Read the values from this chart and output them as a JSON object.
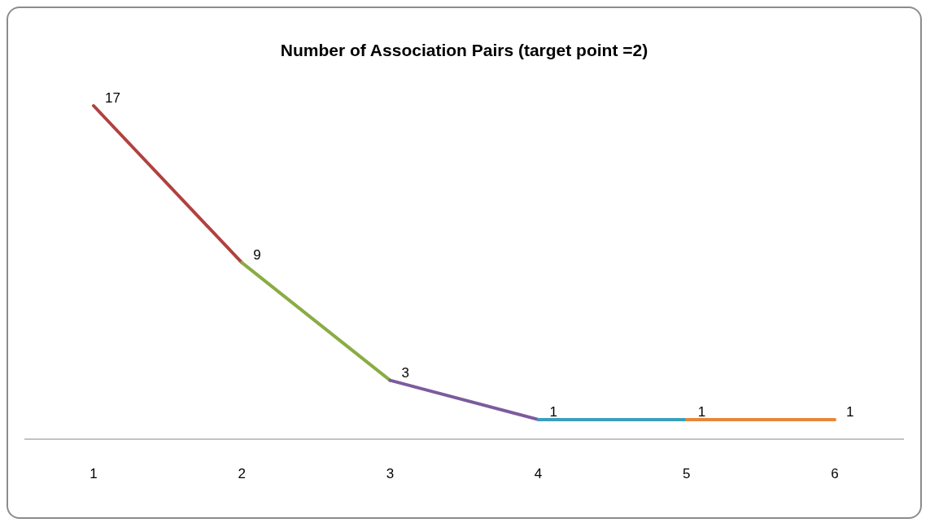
{
  "chart_data": {
    "type": "line",
    "title": "Number of Association Pairs (target point =2)",
    "categories": [
      "1",
      "2",
      "3",
      "4",
      "5",
      "6"
    ],
    "series": [
      {
        "color": "#b2413f",
        "values": [
          17,
          9,
          null,
          null,
          null,
          null
        ],
        "value_labels": [
          "17",
          null,
          null,
          null,
          null,
          null
        ]
      },
      {
        "color": "#8aac45",
        "values": [
          null,
          9,
          3,
          null,
          null,
          null
        ],
        "value_labels": [
          null,
          "9",
          null,
          null,
          null,
          null
        ]
      },
      {
        "color": "#7b5b9e",
        "values": [
          null,
          null,
          3,
          1,
          null,
          null
        ],
        "value_labels": [
          null,
          null,
          "3",
          null,
          null,
          null
        ]
      },
      {
        "color": "#3a9fbb",
        "values": [
          null,
          null,
          null,
          1,
          1,
          null
        ],
        "value_labels": [
          null,
          null,
          null,
          "1",
          null,
          null
        ]
      },
      {
        "color": "#e7873a",
        "values": [
          null,
          null,
          null,
          null,
          1,
          1
        ],
        "value_labels": [
          null,
          null,
          null,
          null,
          "1",
          "1"
        ]
      }
    ],
    "marker": "none",
    "line_style": "solid"
  }
}
